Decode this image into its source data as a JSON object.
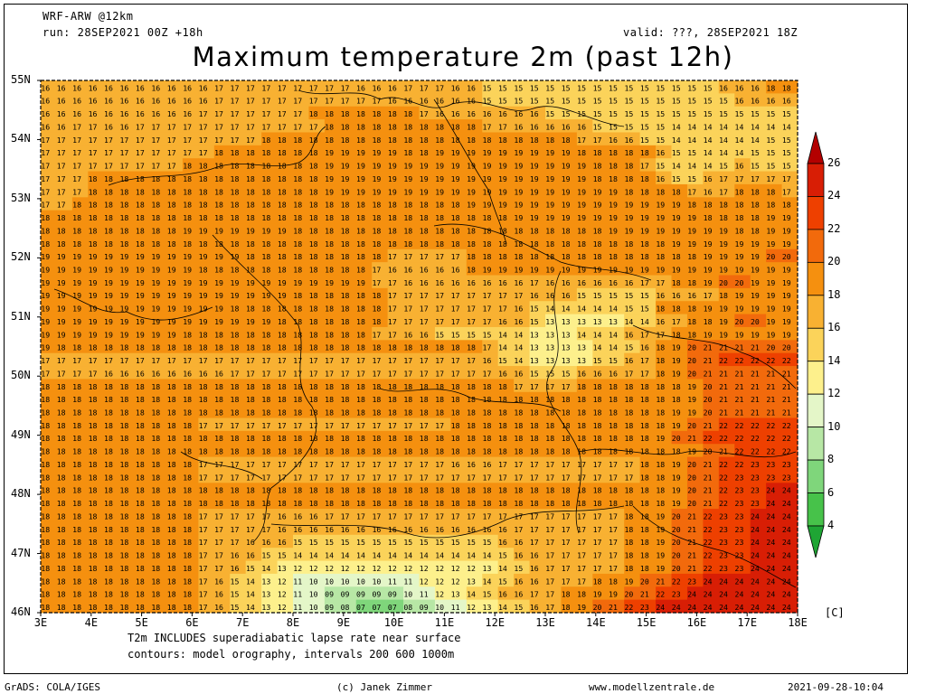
{
  "header": {
    "model": "WRF-ARW @12km",
    "run": "run: 28SEP2021 00Z +18h",
    "valid": "valid: ???, 28SEP2021 18Z",
    "title": "Maximum temperature 2m (past 12h)"
  },
  "axes": {
    "lat_labels": [
      "55N",
      "54N",
      "53N",
      "52N",
      "51N",
      "50N",
      "49N",
      "48N",
      "47N",
      "46N"
    ],
    "lon_labels": [
      "3E",
      "4E",
      "5E",
      "6E",
      "7E",
      "8E",
      "9E",
      "10E",
      "11E",
      "12E",
      "13E",
      "14E",
      "15E",
      "16E",
      "17E",
      "18E"
    ]
  },
  "colorbar": {
    "levels": [
      "26",
      "24",
      "22",
      "20",
      "18",
      "16",
      "14",
      "12",
      "10",
      "8",
      "6",
      "4"
    ],
    "unit": "[C]",
    "colors": [
      "#b30000",
      "#d81e05",
      "#ee4000",
      "#f26a0c",
      "#f5900f",
      "#f8b132",
      "#fbd35a",
      "#fdf08c",
      "#e4f6c8",
      "#b7e7a5",
      "#7fd67b",
      "#47c24a",
      "#1fa534"
    ]
  },
  "notes": {
    "line1": "T2m INCLUDES superadiabatic lapse rate near surface",
    "line2": "contours: model orography, intervals 200 600 1000m"
  },
  "footer": {
    "grads": "GrADS: COLA/IGES",
    "author": "(c) Janek Zimmer",
    "site": "www.modellzentrale.de",
    "timestamp": "2021-09-28-10:04"
  },
  "field_rows": [
    "161616161616161616161617171717171717171716161617171716161515151515151515151515151515151616161818",
    "161616161616161616161617171717171717171717171616161616161515151515151515151515151515151516161616",
    "161616161616161616161717171717171718181818181818171616161616161615151515151515151515151515151515",
    "161617171616171717171717171717171717181818181818181818181717161616161615151515151414141414141414",
    "171717171717171717171717171718181818181818181818181818181818181818181717161615151414141414141515",
    "171717171717171717171718181818181818191919191918181919191919191919191818181818161515141414151515",
    "171717171717171717181818181818181818191919191919191919191919191919191918181817151414141516151515",
    "171717181818181818181818181818181818191919191919191919191919191919191918181818161515161717171717",
    "171717181818181818181818181818181818191919191919191919191919191919191919191818181817161718181817",
    "171718181818181818181818181818181818181818181818181818191919191919191919191919191918181818181818",
    "181818181818181818181818181818181818181818181818181818181818191919191919191919191919181818181919",
    "181818181818181818191919191919191818181818181818181818181818181818181818191919191919191918181919",
    "181818181818181818181818181818181818181818181818181818181818181818181818181818181919191919191919",
    "191919191919191919191919191818181818181818181717171717181818181818181818181818181818191919192020",
    "191919191919191919191818181818181818181818171616161616181919191919191919191919191919191919191919",
    "191919191919191919191919191919191919191919171716161616161616161716161616161617171818192020191919",
    "191919191919191919191919191919191818181818181717171717171717171616161515151515161616171819191919",
    "191919191919191919191919181818181818181818181717171717171717161514141414141515181818191919191919",
    "191919191919191919191919191919181818181818181717171717171716161513131313131414161718181920201919",
    "191919191919191919181818181818181818181818171716161515151514141313131414141617171818191919191919",
    "191818181818181818181818181818181818181818181818181818181714141313131314141516181920212121212020",
    "171717171717171717171717171717171717171717171717171717171615141313131315151617181920212222222222",
    "171717171616161616161616171717171717171717171717171717171716161515151616161717181920212121212121",
    "181818181818181818181818181818181818181818181818181818181818171717171818181818181819202121212121",
    "181818181818181818181818181818181818181818181818181818181818181818181818181818181819202121212121",
    "181818181818181818181818181818181818181818181818181818181818181818181818181818181919202121212121",
    "181818181818181818181717171717171717171717171717171718181818181818181818181818181920212222222222",
    "181818181818181818181818181818181818181818181818181818181818181818181818181818192021222222222222",
    "181818181818181818181818181818181818181818181818181818181818181818181818181818181819202122222222",
    "181818181818181818181717171717171717171717171717171716161617171717171717171718181920212222232323",
    "181818181818181818181717171717171717171717171717171717171717171717171717171718181920212223232323",
    "181818181818181818181818181818181818181818181818181818181818181818181818181818181920212223232424",
    "181818181818181818181818181818181818181818181818181818181818181818181818181818181920212223232424",
    "181818181818181818181717171717161616171717171717171717171717171717171717171818192021222323242424",
    "181818181818181818181717171717161616161616161616161616161616171717171717171818192021222323242424",
    "181818181818181818181717171616161515151515151515151515151516161717171717171818192021222323242424",
    "181818181818181818181717161615151414141414141414141414141415161617171717171818192021222323242424",
    "181818181818181818181717161514131212121212121212121212121314151617171717171818192021222323242424",
    "181818181818181818181716151413121110101010101111121212131415161617171718181920212223242424242424",
    "181818181818181818181716151413121110090909090910111213141516161717181819192021222324242424242424",
    "181818181818181818181716151413121110090807070708091011121314151617181920212223242424242424242424"
  ]
}
